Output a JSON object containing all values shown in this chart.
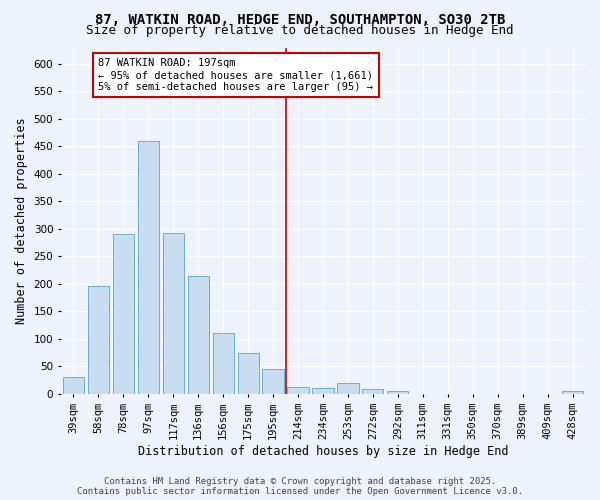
{
  "title1": "87, WATKIN ROAD, HEDGE END, SOUTHAMPTON, SO30 2TB",
  "title2": "Size of property relative to detached houses in Hedge End",
  "xlabel": "Distribution of detached houses by size in Hedge End",
  "ylabel": "Number of detached properties",
  "categories": [
    "39sqm",
    "58sqm",
    "78sqm",
    "97sqm",
    "117sqm",
    "136sqm",
    "156sqm",
    "175sqm",
    "195sqm",
    "214sqm",
    "234sqm",
    "253sqm",
    "272sqm",
    "292sqm",
    "311sqm",
    "331sqm",
    "350sqm",
    "370sqm",
    "389sqm",
    "409sqm",
    "428sqm"
  ],
  "values": [
    30,
    197,
    290,
    460,
    292,
    215,
    110,
    75,
    46,
    13,
    10,
    20,
    8,
    5,
    0,
    0,
    0,
    0,
    0,
    0,
    5
  ],
  "bar_color": "#c9ddf0",
  "bar_edge_color": "#6baed6",
  "vline_color": "#cc0000",
  "annotation_text": "87 WATKIN ROAD: 197sqm\n← 95% of detached houses are smaller (1,661)\n5% of semi-detached houses are larger (95) →",
  "annotation_box_color": "white",
  "annotation_box_edge_color": "#cc0000",
  "background_color": "#edf2fb",
  "grid_color": "white",
  "title_fontsize": 10,
  "subtitle_fontsize": 9,
  "xlabel_fontsize": 8.5,
  "ylabel_fontsize": 8.5,
  "tick_fontsize": 7.5,
  "annot_fontsize": 7.5,
  "footer_text": "Contains HM Land Registry data © Crown copyright and database right 2025.\nContains public sector information licensed under the Open Government Licence v3.0.",
  "footer_fontsize": 6.5,
  "ylim": [
    0,
    630
  ],
  "yticks": [
    0,
    50,
    100,
    150,
    200,
    250,
    300,
    350,
    400,
    450,
    500,
    550,
    600
  ]
}
